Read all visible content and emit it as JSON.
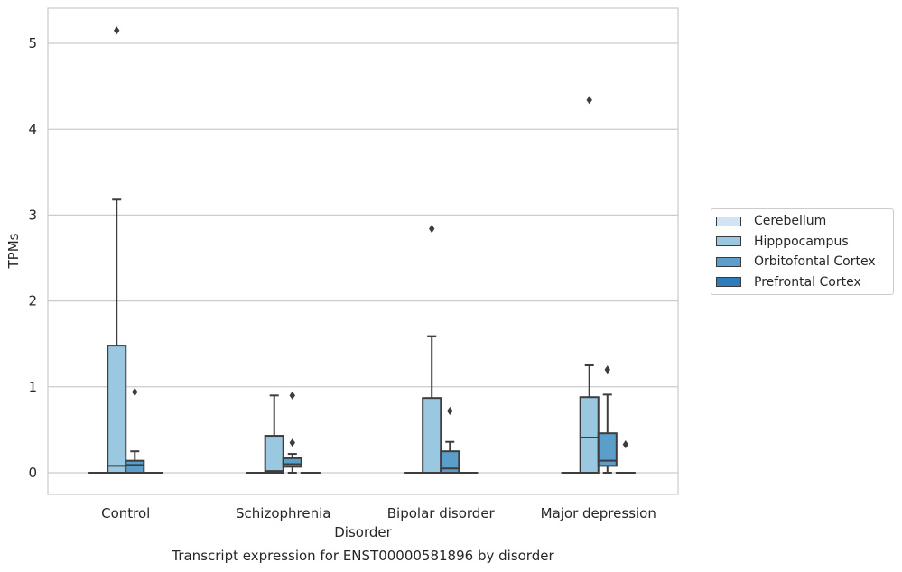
{
  "chart_data": {
    "type": "box",
    "title": "",
    "caption": "Transcript expression for ENST00000581896 by disorder",
    "xlabel": "Disorder",
    "ylabel": "TPMs",
    "ylim": [
      -0.25,
      5.4
    ],
    "yticks": [
      "0",
      "1",
      "2",
      "3",
      "4",
      "5"
    ],
    "grid": "horizontal",
    "legend_position": "right",
    "categories": [
      "Control",
      "Schizophrenia",
      "Bipolar disorder",
      "Major depression"
    ],
    "series": [
      {
        "name": "Cerebellum",
        "color": "#d2e3f3",
        "boxes": [
          {
            "q1": 0,
            "median": 0,
            "q3": 0,
            "whislo": 0,
            "whishi": 0,
            "fliers": []
          },
          {
            "q1": 0,
            "median": 0,
            "q3": 0,
            "whislo": 0,
            "whishi": 0,
            "fliers": []
          },
          {
            "q1": 0,
            "median": 0,
            "q3": 0,
            "whislo": 0,
            "whishi": 0,
            "fliers": []
          },
          {
            "q1": 0,
            "median": 0,
            "q3": 0,
            "whislo": 0,
            "whishi": 0,
            "fliers": []
          }
        ]
      },
      {
        "name": "Hipppocampus",
        "color": "#9ac8e0",
        "boxes": [
          {
            "q1": 0,
            "median": 0.08,
            "q3": 1.48,
            "whislo": 0,
            "whishi": 3.18,
            "fliers": [
              5.15
            ]
          },
          {
            "q1": 0,
            "median": 0.02,
            "q3": 0.43,
            "whislo": 0,
            "whishi": 0.9,
            "fliers": []
          },
          {
            "q1": 0,
            "median": 0,
            "q3": 0.87,
            "whislo": 0,
            "whishi": 1.59,
            "fliers": [
              2.84
            ]
          },
          {
            "q1": 0,
            "median": 0.41,
            "q3": 0.88,
            "whislo": 0,
            "whishi": 1.25,
            "fliers": [
              4.34
            ]
          }
        ]
      },
      {
        "name": "Orbitofontal Cortex",
        "color": "#5a9ec9",
        "boxes": [
          {
            "q1": 0,
            "median": 0.09,
            "q3": 0.14,
            "whislo": 0,
            "whishi": 0.25,
            "fliers": [
              0.94
            ]
          },
          {
            "q1": 0.07,
            "median": 0.1,
            "q3": 0.17,
            "whislo": 0,
            "whishi": 0.22,
            "fliers": [
              0.35,
              0.9
            ]
          },
          {
            "q1": 0,
            "median": 0.05,
            "q3": 0.25,
            "whislo": 0,
            "whishi": 0.36,
            "fliers": [
              0.72
            ]
          },
          {
            "q1": 0.08,
            "median": 0.14,
            "q3": 0.46,
            "whislo": 0,
            "whishi": 0.91,
            "fliers": [
              1.2
            ]
          }
        ]
      },
      {
        "name": "Prefrontal Cortex",
        "color": "#2d7dbb",
        "boxes": [
          {
            "q1": 0,
            "median": 0,
            "q3": 0,
            "whislo": 0,
            "whishi": 0,
            "fliers": []
          },
          {
            "q1": 0,
            "median": 0,
            "q3": 0,
            "whislo": 0,
            "whishi": 0,
            "fliers": []
          },
          {
            "q1": 0,
            "median": 0,
            "q3": 0,
            "whislo": 0,
            "whishi": 0,
            "fliers": []
          },
          {
            "q1": 0,
            "median": 0,
            "q3": 0,
            "whislo": 0,
            "whishi": 0,
            "fliers": [
              0.33
            ]
          }
        ]
      }
    ]
  }
}
